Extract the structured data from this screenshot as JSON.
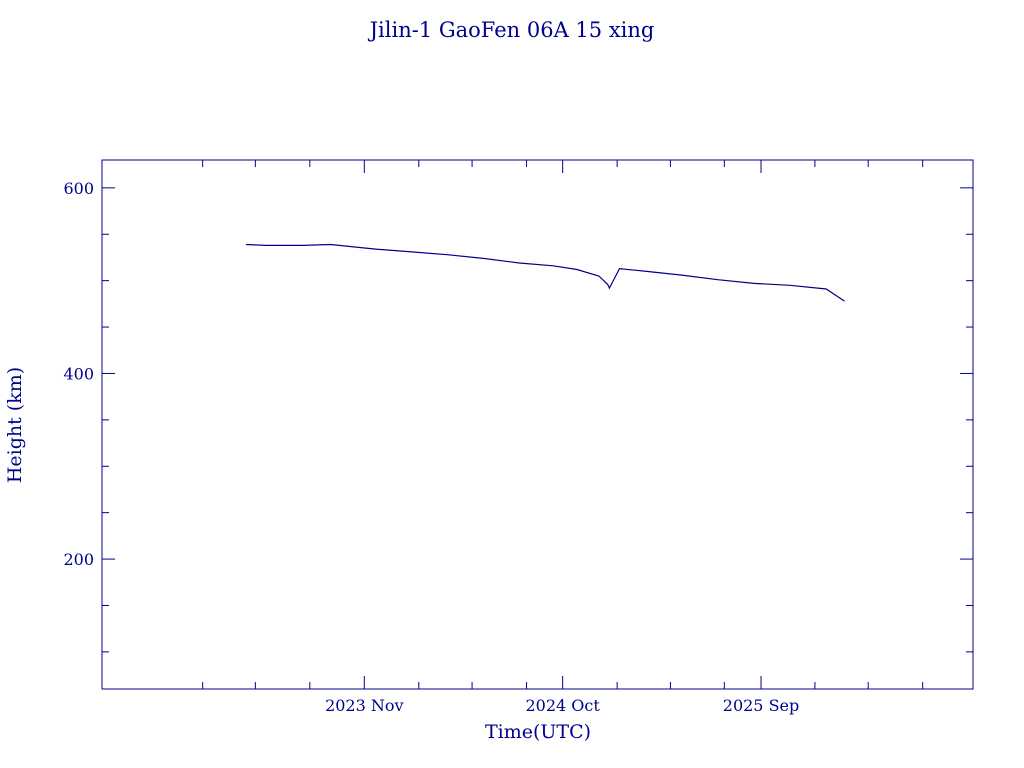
{
  "chart_data": {
    "type": "line",
    "title": "Jilin-1 GaoFen 06A 15 xing",
    "xlabel": "Time(UTC)",
    "ylabel": "Height (km)",
    "ylim": [
      60,
      630
    ],
    "xlim": [
      "2022-08-15",
      "2026-08-25"
    ],
    "grid": false,
    "line_color": "#00008b",
    "y_ticks": [
      {
        "value": 600,
        "label": "600"
      },
      {
        "value": 400,
        "label": "400"
      },
      {
        "value": 200,
        "label": "200"
      }
    ],
    "y_minor_ticks": [
      100,
      150,
      250,
      300,
      350,
      450,
      500,
      550
    ],
    "x_ticks": [
      {
        "value": "2023-11-01",
        "label": "2023 Nov"
      },
      {
        "value": "2024-10-01",
        "label": "2024 Oct"
      },
      {
        "value": "2025-09-01",
        "label": "2025 Sep"
      }
    ],
    "x_minor_ticks": [
      "2023-02-01",
      "2023-05-01",
      "2023-08-01",
      "2024-02-01",
      "2024-05-01",
      "2024-08-01",
      "2025-01-01",
      "2025-04-01",
      "2025-07-01",
      "2025-12-01",
      "2026-03-01",
      "2026-06-01"
    ],
    "series": [
      {
        "x": [
          "2023-04-15",
          "2023-05-20",
          "2023-07-20",
          "2023-09-05",
          "2023-11-20",
          "2024-01-20",
          "2024-03-20",
          "2024-05-20",
          "2024-07-20",
          "2024-09-15",
          "2024-10-25",
          "2024-12-01",
          "2024-12-16",
          "2024-12-19",
          "2025-01-05",
          "2025-02-20",
          "2025-04-20",
          "2025-06-20",
          "2025-08-20",
          "2025-10-20",
          "2025-12-20",
          "2026-01-20"
        ],
        "y": [
          539,
          538,
          538,
          539,
          534,
          531,
          528,
          524,
          519,
          516,
          512,
          505,
          496,
          492,
          513,
          510,
          506,
          501,
          497,
          495,
          491,
          478
        ]
      }
    ]
  }
}
